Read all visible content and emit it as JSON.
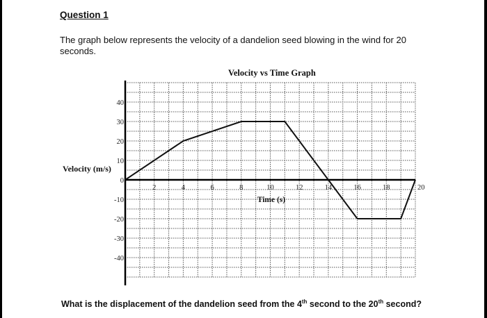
{
  "document": {
    "question_title": "Question 1",
    "intro_text": "The graph below represents the velocity of a dandelion seed blowing in the wind for 20 seconds.",
    "question_parts": {
      "before_4": "What is the displacement of the dandelion seed from the ",
      "num_4": "4",
      "sup_4": "th",
      "middle": " second to the ",
      "num_20": "20",
      "sup_20": "th",
      "after": " second?"
    }
  },
  "chart_data": {
    "type": "line",
    "title": "Velocity vs Time Graph",
    "xlabel": "Time (s)",
    "ylabel": "Velocity (m/s)",
    "x": [
      0,
      4,
      8,
      11,
      14,
      16,
      19,
      20
    ],
    "series": [
      {
        "name": "velocity",
        "values": [
          0,
          20,
          30,
          30,
          0,
          -20,
          -20,
          0
        ]
      }
    ],
    "x_ticks": [
      2,
      4,
      6,
      8,
      10,
      12,
      14,
      16,
      18,
      20
    ],
    "y_ticks": [
      40,
      30,
      20,
      10,
      0,
      -10,
      -20,
      -30,
      -40
    ],
    "xlim": [
      0,
      20
    ],
    "ylim": [
      -50,
      50
    ],
    "grid": true,
    "legend": null
  }
}
